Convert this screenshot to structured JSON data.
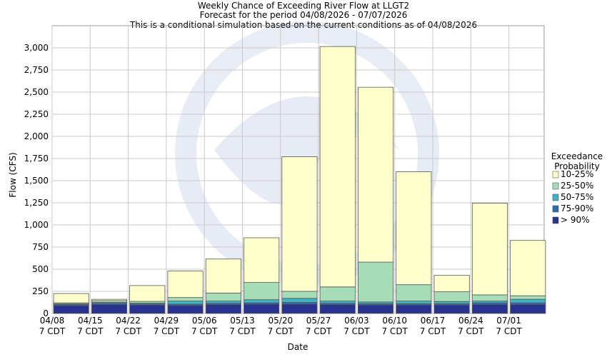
{
  "chart_data": {
    "type": "stacked_bar",
    "title": "Weekly Chance of Exceeding River Flow at LLGT2",
    "subtitle": "Forecast for the period 04/08/2026 - 07/07/2026",
    "note": "This is a conditional simulation based on the current conditions as of 04/08/2026",
    "x_label": "Date",
    "y_label": "Flow (CFS)",
    "legend_title": "Exceedance Probability",
    "categories": [
      "04/08\n7 CDT",
      "04/15\n7 CDT",
      "04/22\n7 CDT",
      "04/29\n7 CDT",
      "05/06\n7 CDT",
      "05/13\n7 CDT",
      "05/20\n7 CDT",
      "05/27\n7 CDT",
      "06/03\n7 CDT",
      "06/10\n7 CDT",
      "06/17\n7 CDT",
      "06/24\n7 CDT",
      "07/01\n7 CDT"
    ],
    "series": [
      {
        "name": "10-25%",
        "color": "#ffffcc",
        "values": [
          105,
          15,
          178,
          300,
          385,
          505,
          1520,
          2715,
          1975,
          1275,
          185,
          1035,
          625
        ]
      },
      {
        "name": "25-50%",
        "color": "#a6dcb6",
        "values": [
          12,
          20,
          20,
          40,
          90,
          195,
          80,
          160,
          450,
          185,
          110,
          70,
          40
        ]
      },
      {
        "name": "50-75%",
        "color": "#3fb4c4",
        "values": [
          8,
          10,
          10,
          35,
          25,
          35,
          45,
          25,
          20,
          30,
          25,
          20,
          40
        ]
      },
      {
        "name": "75-90%",
        "color": "#2f6db0",
        "values": [
          10,
          15,
          12,
          15,
          15,
          15,
          20,
          15,
          15,
          15,
          15,
          20,
          20
        ]
      },
      {
        "name": "> 90%",
        "color": "#27338f",
        "values": [
          90,
          100,
          95,
          90,
          100,
          105,
          105,
          100,
          95,
          95,
          95,
          100,
          100
        ]
      }
    ],
    "ylim": [
      0,
      3250
    ],
    "yticks": [
      0,
      250,
      500,
      750,
      {
        "value": 1000,
        "label": "1,000"
      },
      {
        "value": 1250,
        "label": "1,250"
      },
      {
        "value": 1500,
        "label": "1,500"
      },
      {
        "value": 1750,
        "label": "1,750"
      },
      {
        "value": 2000,
        "label": "2,000"
      },
      {
        "value": 2250,
        "label": "2,250"
      },
      {
        "value": 2500,
        "label": "2,500"
      },
      {
        "value": 2750,
        "label": "2,750"
      },
      {
        "value": 3000,
        "label": "3,000"
      }
    ],
    "grid": true
  }
}
